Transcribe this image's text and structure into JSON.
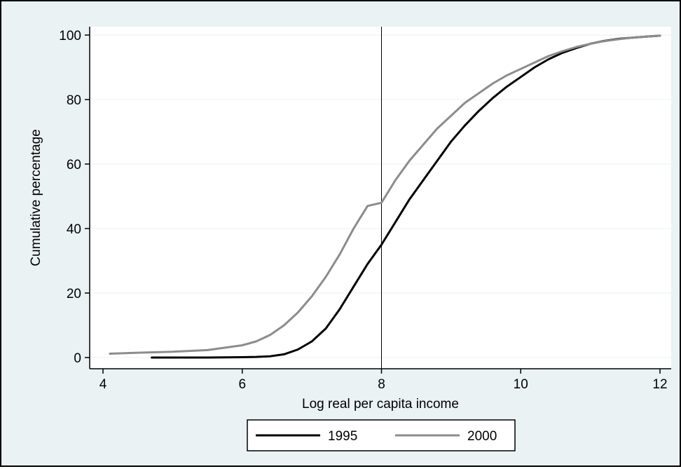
{
  "colors": {
    "background": "#eaf2f3",
    "plot_background": "#ffffff",
    "grid": "#eaf2f3",
    "series_1995": "#000000",
    "series_2000": "#8c8c8c",
    "reference_line": "#000000"
  },
  "chart_data": {
    "type": "line",
    "title": "",
    "xlabel": "Log real per capita income",
    "ylabel": "Cumulative percentage",
    "xlim": [
      4,
      12
    ],
    "ylim": [
      0,
      100
    ],
    "xticks": [
      4,
      6,
      8,
      10,
      12
    ],
    "yticks": [
      0,
      20,
      40,
      60,
      80,
      100
    ],
    "grid": true,
    "grid_axis": "y",
    "legend_position": "bottom-center",
    "reference_line_x": 8,
    "series": [
      {
        "name": "1995",
        "x": [
          4.7,
          5.0,
          5.5,
          6.0,
          6.2,
          6.4,
          6.6,
          6.8,
          7.0,
          7.2,
          7.4,
          7.6,
          7.8,
          8.0,
          8.2,
          8.4,
          8.6,
          8.8,
          9.0,
          9.2,
          9.4,
          9.6,
          9.8,
          10.0,
          10.2,
          10.4,
          10.6,
          10.8,
          11.0,
          11.2,
          11.4,
          11.6,
          11.8,
          12.0
        ],
        "y": [
          0,
          0,
          0,
          0.1,
          0.2,
          0.4,
          1.0,
          2.5,
          5,
          9,
          15,
          22,
          29,
          35,
          42,
          49,
          55,
          61,
          67,
          72,
          76.5,
          80.5,
          84,
          87,
          90,
          92.5,
          94.5,
          96,
          97.3,
          98.2,
          98.8,
          99.2,
          99.5,
          99.8
        ]
      },
      {
        "name": "2000",
        "x": [
          4.1,
          4.5,
          5.0,
          5.5,
          6.0,
          6.2,
          6.4,
          6.6,
          6.8,
          7.0,
          7.2,
          7.4,
          7.6,
          7.8,
          8.0,
          8.2,
          8.4,
          8.6,
          8.8,
          9.0,
          9.2,
          9.4,
          9.6,
          9.8,
          10.0,
          10.2,
          10.4,
          10.6,
          10.8,
          11.0,
          11.2,
          11.4,
          11.6,
          11.8,
          12.0
        ],
        "y": [
          1.2,
          1.5,
          1.8,
          2.3,
          3.8,
          5,
          7,
          10,
          14,
          19,
          25,
          32,
          40,
          47,
          48,
          55,
          61,
          66,
          71,
          75,
          79,
          82,
          85,
          87.5,
          89.5,
          91.5,
          93.5,
          95,
          96.3,
          97.3,
          98.1,
          98.7,
          99.2,
          99.5,
          99.8
        ]
      }
    ]
  }
}
